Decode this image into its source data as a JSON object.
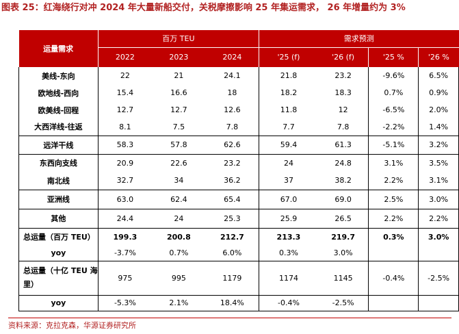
{
  "title": "图表 25：红海绕行对冲 2024 年大量新船交付，关税摩擦影响 25 年集运需求， 26 年增量约为 3%",
  "header": {
    "row_label": "运量需求",
    "group1": "百万 TEU",
    "group2": "需求预测",
    "cols": [
      "2022",
      "2023",
      "2024",
      "'25 (f)",
      "'26 (f)",
      "'25 %",
      "'26 %"
    ]
  },
  "rows": [
    {
      "label": "美线-东向",
      "values": [
        "22",
        "21",
        "24.1",
        "21.8",
        "23.2",
        "-9.6%",
        "6.5%"
      ]
    },
    {
      "label": "欧地线-西向",
      "values": [
        "15.4",
        "16.6",
        "18",
        "18.2",
        "18.3",
        "0.7%",
        "0.9%"
      ]
    },
    {
      "label": "欧美线-回程",
      "values": [
        "12.7",
        "12.7",
        "12.6",
        "11.8",
        "12",
        "-6.5%",
        "2.0%"
      ]
    },
    {
      "label": "大西洋线-往返",
      "values": [
        "8.1",
        "7.5",
        "7.8",
        "7.7",
        "7.8",
        "-2.2%",
        "1.4%"
      ]
    },
    {
      "label": "远洋干线",
      "values": [
        "58.3",
        "57.8",
        "62.6",
        "59.4",
        "61.3",
        "-5.1%",
        "3.2%"
      ]
    },
    {
      "label": "东西向支线",
      "values": [
        "20.9",
        "22.6",
        "23.2",
        "24",
        "24.8",
        "3.1%",
        "3.5%"
      ]
    },
    {
      "label": "南北线",
      "values": [
        "32.7",
        "34",
        "36.2",
        "37",
        "38.2",
        "2.2%",
        "3.1%"
      ]
    },
    {
      "label": "亚洲线",
      "values": [
        "63.0",
        "62.4",
        "65.4",
        "67.0",
        "69.0",
        "2.5%",
        "3.0%"
      ]
    },
    {
      "label": "其他",
      "values": [
        "24.4",
        "24",
        "25.3",
        "25.9",
        "26.5",
        "2.2%",
        "2.2%"
      ]
    },
    {
      "label": "总运量（百万 TEU）",
      "values": [
        "199.3",
        "200.8",
        "212.7",
        "213.3",
        "219.7",
        "0.3%",
        "3.0%"
      ]
    },
    {
      "label": "yoy",
      "values": [
        "-3.7%",
        "0.7%",
        "6.0%",
        "0.3%",
        "3.0%",
        "",
        ""
      ]
    },
    {
      "label": "总运量（十亿 TEU 海里）",
      "values": [
        "975",
        "995",
        "1179",
        "1174",
        "1145",
        "-0.4%",
        "-2.5%"
      ]
    },
    {
      "label": "yoy",
      "values": [
        "-5.3%",
        "2.1%",
        "18.4%",
        "-0.4%",
        "-2.5%",
        "",
        ""
      ]
    }
  ],
  "source": "资料来源：克拉克森，华源证券研究所",
  "colors": {
    "header_bg": "#c00000",
    "title_text": "#b22222"
  }
}
